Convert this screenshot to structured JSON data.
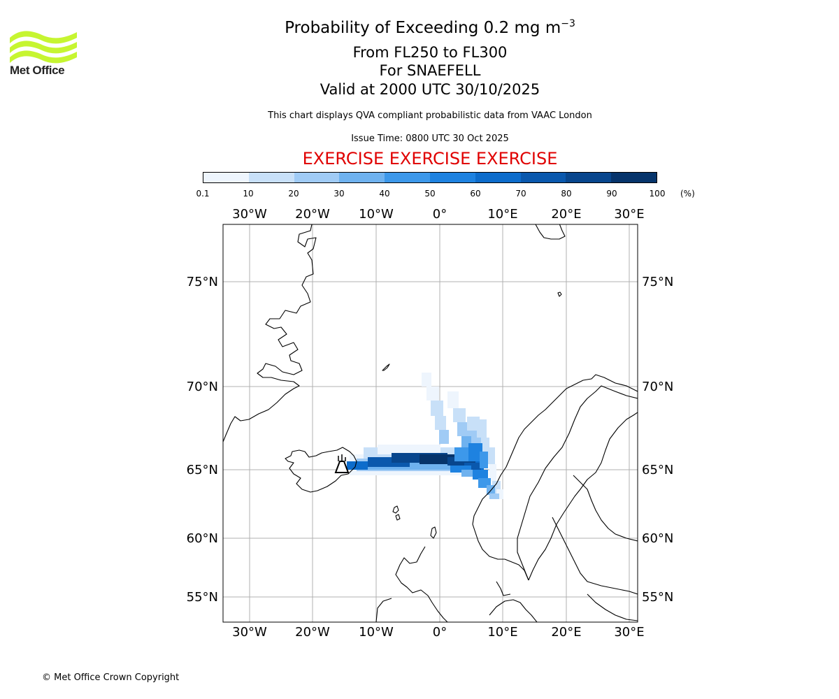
{
  "header": {
    "logo_text": "Met Office",
    "title_main": "Probability of Exceeding 0.2 mg m",
    "title_exponent": "−3",
    "flight_levels": "From FL250 to FL300",
    "volcano": "For SNAEFELL",
    "valid_time": "Valid at 2000 UTC 30/10/2025",
    "description": "This chart displays QVA compliant probabilistic data from VAAC London",
    "issue_time": "Issue Time: 0800 UTC 30 Oct 2025",
    "exercise_banner": "EXERCISE EXERCISE EXERCISE"
  },
  "colorbar": {
    "ticks": [
      "0.1",
      "10",
      "20",
      "30",
      "40",
      "50",
      "60",
      "70",
      "80",
      "90",
      "100"
    ],
    "unit": "(%)",
    "colors": [
      "#eef5fd",
      "#c8e0f8",
      "#a0cbf5",
      "#6fb2ef",
      "#3d98ea",
      "#1e82e0",
      "#0d6ccb",
      "#0a58ad",
      "#08468d",
      "#06346b"
    ]
  },
  "map": {
    "lon_labels": [
      "30°W",
      "20°W",
      "10°W",
      "0°",
      "10°E",
      "20°E",
      "30°E"
    ],
    "lat_labels": [
      "75°N",
      "70°N",
      "65°N",
      "60°N",
      "55°N"
    ],
    "volcano_marker": "volcano-icon"
  },
  "footer": {
    "copyright": "© Met Office Crown Copyright"
  }
}
